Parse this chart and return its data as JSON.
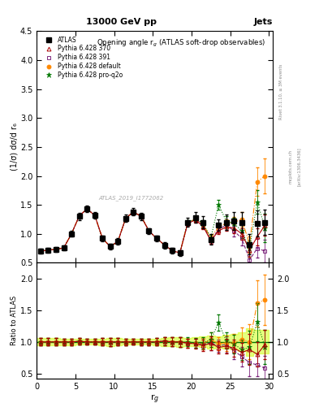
{
  "title_top": "13000 GeV pp",
  "title_right": "Jets",
  "plot_title": "Opening angle r$_g$ (ATLAS soft-drop observables)",
  "xlabel": "r$_g$",
  "ylabel_main": "(1/σ) dσ/d r₆",
  "ylabel_ratio": "Ratio to ATLAS",
  "watermark": "ATLAS_2019_I1772062",
  "right_label_top": "Rivet 3.1.10, ≥ 3M events",
  "right_label_bot": "[arXiv:1306.3436]",
  "right_label_mid": "mcplots.cern.ch",
  "xlim": [
    0,
    30.5
  ],
  "ylim_main": [
    0.5,
    4.5
  ],
  "ylim_ratio": [
    0.42,
    2.25
  ],
  "xticks": [
    0,
    5,
    10,
    15,
    20,
    25,
    30
  ],
  "yticks_main": [
    0.5,
    1.0,
    1.5,
    2.0,
    2.5,
    3.0,
    3.5,
    4.0,
    4.5
  ],
  "yticks_ratio": [
    0.5,
    1.0,
    1.5,
    2.0
  ],
  "atlas_x": [
    0.5,
    1.5,
    2.5,
    3.5,
    4.5,
    5.5,
    6.5,
    7.5,
    8.5,
    9.5,
    10.5,
    11.5,
    12.5,
    13.5,
    14.5,
    15.5,
    16.5,
    17.5,
    18.5,
    19.5,
    20.5,
    21.5,
    22.5,
    23.5,
    24.5,
    25.5,
    26.5,
    27.5,
    28.5,
    29.5
  ],
  "atlas_y": [
    0.7,
    0.72,
    0.73,
    0.76,
    1.0,
    1.3,
    1.43,
    1.32,
    0.92,
    0.78,
    0.87,
    1.27,
    1.38,
    1.3,
    1.05,
    0.92,
    0.8,
    0.71,
    0.67,
    1.2,
    1.28,
    1.2,
    0.9,
    1.15,
    1.2,
    1.22,
    1.2,
    0.82,
    1.18,
    1.2
  ],
  "atlas_yerr": [
    0.04,
    0.04,
    0.04,
    0.04,
    0.05,
    0.06,
    0.06,
    0.06,
    0.05,
    0.05,
    0.05,
    0.06,
    0.06,
    0.06,
    0.05,
    0.05,
    0.05,
    0.05,
    0.05,
    0.08,
    0.09,
    0.1,
    0.09,
    0.1,
    0.13,
    0.15,
    0.18,
    0.18,
    0.22,
    0.22
  ],
  "py370_x": [
    0.5,
    1.5,
    2.5,
    3.5,
    4.5,
    5.5,
    6.5,
    7.5,
    8.5,
    9.5,
    10.5,
    11.5,
    12.5,
    13.5,
    14.5,
    15.5,
    16.5,
    17.5,
    18.5,
    19.5,
    20.5,
    21.5,
    22.5,
    23.5,
    24.5,
    25.5,
    26.5,
    27.5,
    28.5,
    29.5
  ],
  "py370_y": [
    0.7,
    0.72,
    0.73,
    0.76,
    1.0,
    1.31,
    1.43,
    1.32,
    0.92,
    0.78,
    0.87,
    1.27,
    1.38,
    1.3,
    1.05,
    0.92,
    0.81,
    0.71,
    0.67,
    1.18,
    1.24,
    1.13,
    0.88,
    1.05,
    1.12,
    1.1,
    1.0,
    0.72,
    0.95,
    1.15
  ],
  "py370_yerr": [
    0.01,
    0.01,
    0.01,
    0.01,
    0.02,
    0.02,
    0.02,
    0.02,
    0.01,
    0.01,
    0.01,
    0.02,
    0.02,
    0.02,
    0.01,
    0.01,
    0.01,
    0.01,
    0.01,
    0.03,
    0.04,
    0.05,
    0.05,
    0.06,
    0.07,
    0.09,
    0.1,
    0.12,
    0.15,
    0.18
  ],
  "py391_x": [
    0.5,
    1.5,
    2.5,
    3.5,
    4.5,
    5.5,
    6.5,
    7.5,
    8.5,
    9.5,
    10.5,
    11.5,
    12.5,
    13.5,
    14.5,
    15.5,
    16.5,
    17.5,
    18.5,
    19.5,
    20.5,
    21.5,
    22.5,
    23.5,
    24.5,
    25.5,
    26.5,
    27.5,
    28.5,
    29.5
  ],
  "py391_y": [
    0.7,
    0.72,
    0.73,
    0.76,
    1.0,
    1.31,
    1.43,
    1.32,
    0.92,
    0.78,
    0.87,
    1.27,
    1.38,
    1.3,
    1.05,
    0.92,
    0.81,
    0.71,
    0.67,
    1.17,
    1.25,
    1.16,
    0.88,
    1.08,
    1.15,
    1.05,
    0.92,
    0.55,
    0.75,
    0.7
  ],
  "py391_yerr": [
    0.01,
    0.01,
    0.01,
    0.01,
    0.02,
    0.02,
    0.02,
    0.02,
    0.01,
    0.01,
    0.01,
    0.02,
    0.02,
    0.02,
    0.01,
    0.01,
    0.01,
    0.01,
    0.01,
    0.03,
    0.04,
    0.05,
    0.05,
    0.06,
    0.08,
    0.09,
    0.12,
    0.13,
    0.16,
    0.2
  ],
  "pydef_x": [
    0.5,
    1.5,
    2.5,
    3.5,
    4.5,
    5.5,
    6.5,
    7.5,
    8.5,
    9.5,
    10.5,
    11.5,
    12.5,
    13.5,
    14.5,
    15.5,
    16.5,
    17.5,
    18.5,
    19.5,
    20.5,
    21.5,
    22.5,
    23.5,
    24.5,
    25.5,
    26.5,
    27.5,
    28.5,
    29.5
  ],
  "pydef_y": [
    0.7,
    0.72,
    0.73,
    0.76,
    1.0,
    1.31,
    1.43,
    1.32,
    0.92,
    0.78,
    0.87,
    1.27,
    1.38,
    1.3,
    1.05,
    0.92,
    0.81,
    0.71,
    0.67,
    1.18,
    1.26,
    1.17,
    0.93,
    1.12,
    1.18,
    1.2,
    1.25,
    0.82,
    1.9,
    2.0
  ],
  "pydef_yerr": [
    0.01,
    0.01,
    0.01,
    0.01,
    0.02,
    0.02,
    0.02,
    0.02,
    0.01,
    0.01,
    0.01,
    0.02,
    0.02,
    0.02,
    0.01,
    0.01,
    0.01,
    0.01,
    0.01,
    0.03,
    0.04,
    0.05,
    0.05,
    0.06,
    0.07,
    0.09,
    0.12,
    0.14,
    0.25,
    0.3
  ],
  "pyq2o_x": [
    0.5,
    1.5,
    2.5,
    3.5,
    4.5,
    5.5,
    6.5,
    7.5,
    8.5,
    9.5,
    10.5,
    11.5,
    12.5,
    13.5,
    14.5,
    15.5,
    16.5,
    17.5,
    18.5,
    19.5,
    20.5,
    21.5,
    22.5,
    23.5,
    24.5,
    25.5,
    26.5,
    27.5,
    28.5,
    29.5
  ],
  "pyq2o_y": [
    0.7,
    0.72,
    0.73,
    0.76,
    1.0,
    1.31,
    1.43,
    1.32,
    0.92,
    0.78,
    0.87,
    1.27,
    1.38,
    1.3,
    1.05,
    0.92,
    0.81,
    0.71,
    0.67,
    1.2,
    1.26,
    1.18,
    0.93,
    1.5,
    1.22,
    1.18,
    1.05,
    0.75,
    1.55,
    1.1
  ],
  "pyq2o_yerr": [
    0.01,
    0.01,
    0.01,
    0.01,
    0.02,
    0.02,
    0.02,
    0.02,
    0.01,
    0.01,
    0.01,
    0.02,
    0.02,
    0.02,
    0.01,
    0.01,
    0.01,
    0.01,
    0.01,
    0.03,
    0.04,
    0.05,
    0.05,
    0.08,
    0.08,
    0.1,
    0.12,
    0.14,
    0.2,
    0.25
  ],
  "color_atlas": "#000000",
  "color_py370": "#aa0000",
  "color_py391": "#660066",
  "color_pydef": "#ff8800",
  "color_pyq2o": "#007700",
  "band_color": "#ccff00",
  "band_alpha": 0.5
}
